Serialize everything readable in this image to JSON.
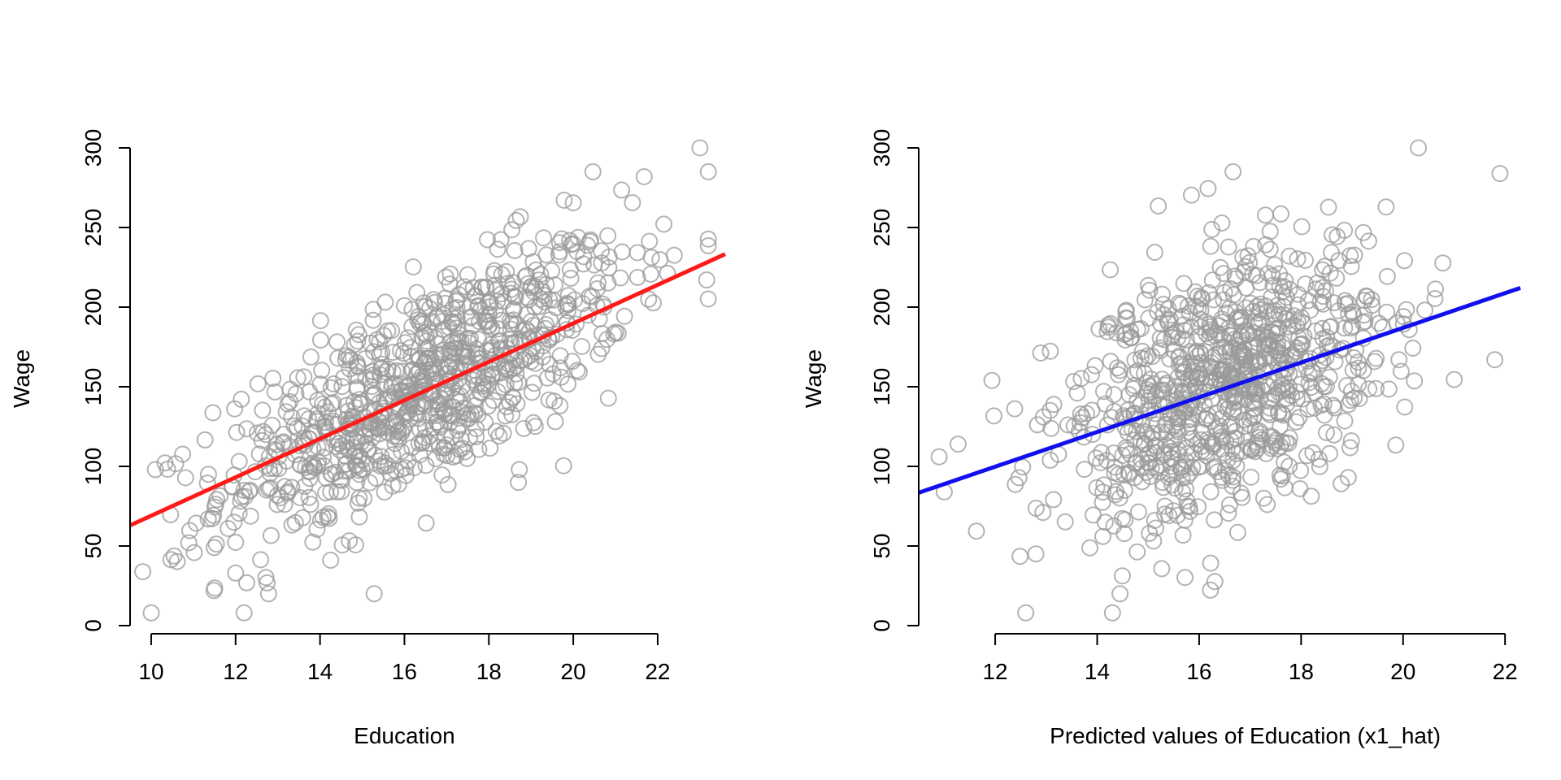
{
  "chart_data": [
    {
      "type": "scatter",
      "xlabel": "Education",
      "ylabel": "Wage",
      "xlim": [
        9.5,
        23.6
      ],
      "ylim": [
        0,
        300
      ],
      "xticks": [
        10,
        12,
        14,
        16,
        18,
        20,
        22
      ],
      "yticks": [
        0,
        50,
        100,
        150,
        200,
        250,
        300
      ],
      "grid": false,
      "point_color": "#999999",
      "point_count": 900,
      "x_mean": 16.5,
      "x_sd": 2.4,
      "y_mean": 150,
      "y_sd": 45,
      "fit_line": {
        "color": "#ff1a1a",
        "intercept": -51.8,
        "slope": 12.08
      },
      "notable_points": [
        [
          10,
          8
        ],
        [
          12.2,
          8
        ],
        [
          23,
          300
        ],
        [
          10.1,
          98
        ],
        [
          12.0,
          33
        ]
      ]
    },
    {
      "type": "scatter",
      "xlabel": "Predicted values of Education (x1_hat)",
      "ylabel": "Wage",
      "xlim": [
        10.5,
        22.3
      ],
      "ylim": [
        0,
        300
      ],
      "xticks": [
        12,
        14,
        16,
        18,
        20,
        22
      ],
      "yticks": [
        0,
        50,
        100,
        150,
        200,
        250,
        300
      ],
      "grid": false,
      "point_color": "#999999",
      "point_count": 900,
      "x_mean": 16.4,
      "x_sd": 1.6,
      "y_mean": 150,
      "y_sd": 45,
      "fit_line": {
        "color": "#1010ee",
        "intercept": -31,
        "slope": 10.9
      },
      "notable_points": [
        [
          10.9,
          106
        ],
        [
          11.0,
          84
        ],
        [
          12.6,
          8
        ],
        [
          14.3,
          8
        ],
        [
          20.3,
          300
        ],
        [
          21.8,
          167
        ]
      ]
    }
  ]
}
